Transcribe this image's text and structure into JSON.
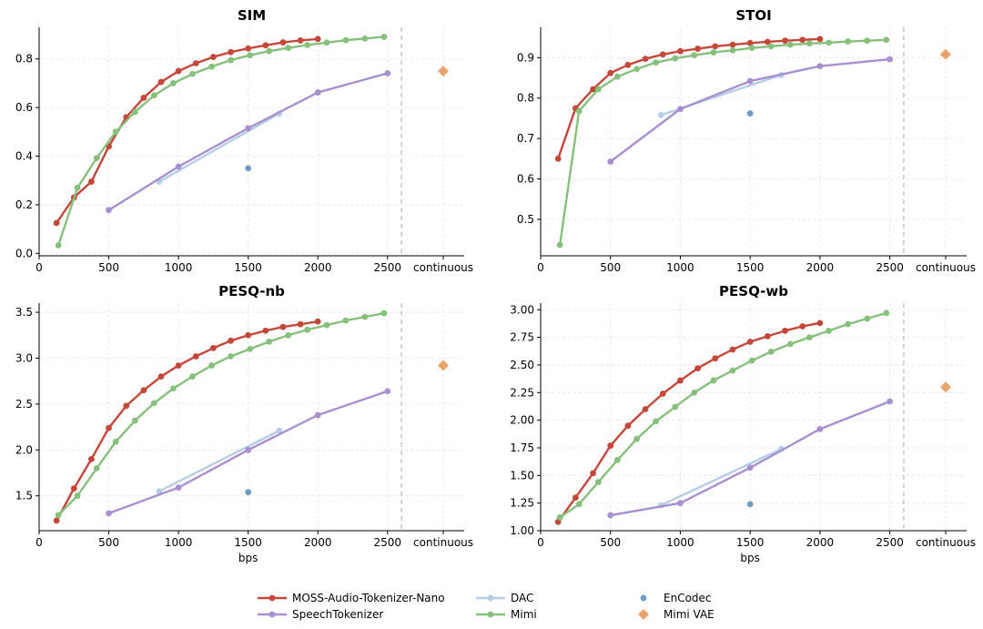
{
  "colors": {
    "MOSS-Audio-Tokenizer-Nano": "#c5473a",
    "DAC": "#b7cde6",
    "EnCodec": "#6f9cc4",
    "SpeechTokenizer": "#a690cf",
    "Mimi": "#86c07c",
    "Mimi VAE": "#e9a36c"
  },
  "legend": {
    "entries": [
      "MOSS-Audio-Tokenizer-Nano",
      "DAC",
      "EnCodec",
      "SpeechTokenizer",
      "Mimi",
      "Mimi VAE"
    ]
  },
  "chart_data": [
    {
      "type": "line",
      "title": "SIM",
      "xlabel": "",
      "ylabel": "",
      "xlim": [
        0,
        3050
      ],
      "ylim": [
        -0.01,
        0.93
      ],
      "xticks": [
        0,
        500,
        1000,
        1500,
        2000,
        2500
      ],
      "continuous_label": "continuous",
      "yticks": [
        "0.0",
        "0.2",
        "0.4",
        "0.6",
        "0.8"
      ],
      "yticks_values": [
        0.0,
        0.2,
        0.4,
        0.6,
        0.8
      ],
      "series": [
        {
          "name": "MOSS-Audio-Tokenizer-Nano",
          "x": [
            125,
            250,
            375,
            500,
            625,
            750,
            875,
            1000,
            1125,
            1250,
            1375,
            1500,
            1625,
            1750,
            1875,
            2000
          ],
          "y": [
            0.125,
            0.23,
            0.295,
            0.44,
            0.56,
            0.64,
            0.705,
            0.75,
            0.782,
            0.808,
            0.828,
            0.843,
            0.856,
            0.868,
            0.876,
            0.882
          ]
        },
        {
          "name": "DAC",
          "x": [
            862,
            1723
          ],
          "y": [
            0.295,
            0.575
          ]
        },
        {
          "name": "EnCodec",
          "x": [
            1500
          ],
          "y": [
            0.35
          ]
        },
        {
          "name": "SpeechTokenizer",
          "x": [
            500,
            1000,
            1500,
            2000,
            2500
          ],
          "y": [
            0.178,
            0.357,
            0.515,
            0.662,
            0.741
          ]
        },
        {
          "name": "Mimi",
          "x": [
            138,
            275,
            413,
            550,
            688,
            825,
            963,
            1100,
            1238,
            1375,
            1513,
            1650,
            1788,
            1925,
            2063,
            2200,
            2338,
            2475
          ],
          "y": [
            0.033,
            0.27,
            0.392,
            0.5,
            0.582,
            0.65,
            0.7,
            0.738,
            0.768,
            0.795,
            0.815,
            0.832,
            0.845,
            0.857,
            0.867,
            0.877,
            0.884,
            0.891
          ]
        },
        {
          "name": "Mimi VAE",
          "continuous": true,
          "y": [
            0.75
          ]
        }
      ]
    },
    {
      "type": "line",
      "title": "STOI",
      "xlabel": "",
      "ylabel": "",
      "xlim": [
        0,
        3050
      ],
      "ylim": [
        0.41,
        0.975
      ],
      "xticks": [
        0,
        500,
        1000,
        1500,
        2000,
        2500
      ],
      "continuous_label": "continuous",
      "yticks": [
        "0.5",
        "0.6",
        "0.7",
        "0.8",
        "0.9"
      ],
      "yticks_values": [
        0.5,
        0.6,
        0.7,
        0.8,
        0.9
      ],
      "series": [
        {
          "name": "MOSS-Audio-Tokenizer-Nano",
          "x": [
            125,
            250,
            375,
            500,
            625,
            750,
            875,
            1000,
            1125,
            1250,
            1375,
            1500,
            1625,
            1750,
            1875,
            2000
          ],
          "y": [
            0.65,
            0.775,
            0.822,
            0.862,
            0.882,
            0.897,
            0.908,
            0.916,
            0.922,
            0.928,
            0.932,
            0.936,
            0.939,
            0.942,
            0.944,
            0.946
          ]
        },
        {
          "name": "DAC",
          "x": [
            862,
            1723
          ],
          "y": [
            0.758,
            0.857
          ]
        },
        {
          "name": "EnCodec",
          "x": [
            1500
          ],
          "y": [
            0.762
          ]
        },
        {
          "name": "SpeechTokenizer",
          "x": [
            500,
            1000,
            1500,
            2000,
            2500
          ],
          "y": [
            0.643,
            0.773,
            0.842,
            0.879,
            0.896
          ]
        },
        {
          "name": "Mimi",
          "x": [
            138,
            275,
            413,
            550,
            688,
            825,
            963,
            1100,
            1238,
            1375,
            1513,
            1650,
            1788,
            1925,
            2063,
            2200,
            2338,
            2475
          ],
          "y": [
            0.437,
            0.768,
            0.822,
            0.853,
            0.872,
            0.888,
            0.898,
            0.906,
            0.913,
            0.918,
            0.924,
            0.928,
            0.932,
            0.935,
            0.937,
            0.94,
            0.942,
            0.944
          ]
        },
        {
          "name": "Mimi VAE",
          "continuous": true,
          "y": [
            0.908
          ]
        }
      ]
    },
    {
      "type": "line",
      "title": "PESQ-nb",
      "xlabel": "bps",
      "ylabel": "",
      "xlim": [
        0,
        3050
      ],
      "ylim": [
        1.12,
        3.6
      ],
      "xticks": [
        0,
        500,
        1000,
        1500,
        2000,
        2500
      ],
      "continuous_label": "continuous",
      "yticks": [
        "1.5",
        "2.0",
        "2.5",
        "3.0",
        "3.5"
      ],
      "yticks_values": [
        1.5,
        2.0,
        2.5,
        3.0,
        3.5
      ],
      "series": [
        {
          "name": "MOSS-Audio-Tokenizer-Nano",
          "x": [
            125,
            250,
            375,
            500,
            625,
            750,
            875,
            1000,
            1125,
            1250,
            1375,
            1500,
            1625,
            1750,
            1875,
            2000
          ],
          "y": [
            1.23,
            1.58,
            1.9,
            2.24,
            2.48,
            2.65,
            2.8,
            2.92,
            3.02,
            3.11,
            3.19,
            3.25,
            3.3,
            3.34,
            3.37,
            3.4
          ]
        },
        {
          "name": "DAC",
          "x": [
            862,
            1723
          ],
          "y": [
            1.55,
            2.21
          ]
        },
        {
          "name": "EnCodec",
          "x": [
            1500
          ],
          "y": [
            1.54
          ]
        },
        {
          "name": "SpeechTokenizer",
          "x": [
            500,
            1000,
            1500,
            2000,
            2500
          ],
          "y": [
            1.31,
            1.59,
            2.0,
            2.38,
            2.64
          ]
        },
        {
          "name": "Mimi",
          "x": [
            138,
            275,
            413,
            550,
            688,
            825,
            963,
            1100,
            1238,
            1375,
            1513,
            1650,
            1788,
            1925,
            2063,
            2200,
            2338,
            2475
          ],
          "y": [
            1.29,
            1.5,
            1.8,
            2.09,
            2.32,
            2.51,
            2.67,
            2.8,
            2.92,
            3.02,
            3.1,
            3.18,
            3.25,
            3.31,
            3.36,
            3.41,
            3.45,
            3.49
          ]
        },
        {
          "name": "Mimi VAE",
          "continuous": true,
          "y": [
            2.92
          ]
        }
      ]
    },
    {
      "type": "line",
      "title": "PESQ-wb",
      "xlabel": "bps",
      "ylabel": "",
      "xlim": [
        0,
        3050
      ],
      "ylim": [
        1.0,
        3.06
      ],
      "xticks": [
        0,
        500,
        1000,
        1500,
        2000,
        2500
      ],
      "continuous_label": "continuous",
      "yticks": [
        "1.00",
        "1.25",
        "1.50",
        "1.75",
        "2.00",
        "2.25",
        "2.50",
        "2.75",
        "3.00"
      ],
      "yticks_values": [
        1.0,
        1.25,
        1.5,
        1.75,
        2.0,
        2.25,
        2.5,
        2.75,
        3.0
      ],
      "series": [
        {
          "name": "MOSS-Audio-Tokenizer-Nano",
          "x": [
            125,
            250,
            375,
            500,
            625,
            750,
            875,
            1000,
            1125,
            1250,
            1375,
            1500,
            1625,
            1750,
            1875,
            2000
          ],
          "y": [
            1.08,
            1.3,
            1.52,
            1.77,
            1.95,
            2.1,
            2.24,
            2.36,
            2.47,
            2.56,
            2.64,
            2.71,
            2.76,
            2.81,
            2.85,
            2.88
          ]
        },
        {
          "name": "DAC",
          "x": [
            862,
            1723
          ],
          "y": [
            1.23,
            1.74
          ]
        },
        {
          "name": "EnCodec",
          "x": [
            1500
          ],
          "y": [
            1.24
          ]
        },
        {
          "name": "SpeechTokenizer",
          "x": [
            500,
            1000,
            1500,
            2000,
            2500
          ],
          "y": [
            1.14,
            1.25,
            1.57,
            1.92,
            2.17
          ]
        },
        {
          "name": "Mimi",
          "x": [
            138,
            275,
            413,
            550,
            688,
            825,
            963,
            1100,
            1238,
            1375,
            1513,
            1650,
            1788,
            1925,
            2063,
            2200,
            2338,
            2475
          ],
          "y": [
            1.12,
            1.24,
            1.44,
            1.64,
            1.83,
            1.99,
            2.12,
            2.25,
            2.36,
            2.45,
            2.54,
            2.62,
            2.69,
            2.75,
            2.81,
            2.87,
            2.92,
            2.97
          ]
        },
        {
          "name": "Mimi VAE",
          "continuous": true,
          "y": [
            2.3
          ]
        }
      ]
    }
  ]
}
